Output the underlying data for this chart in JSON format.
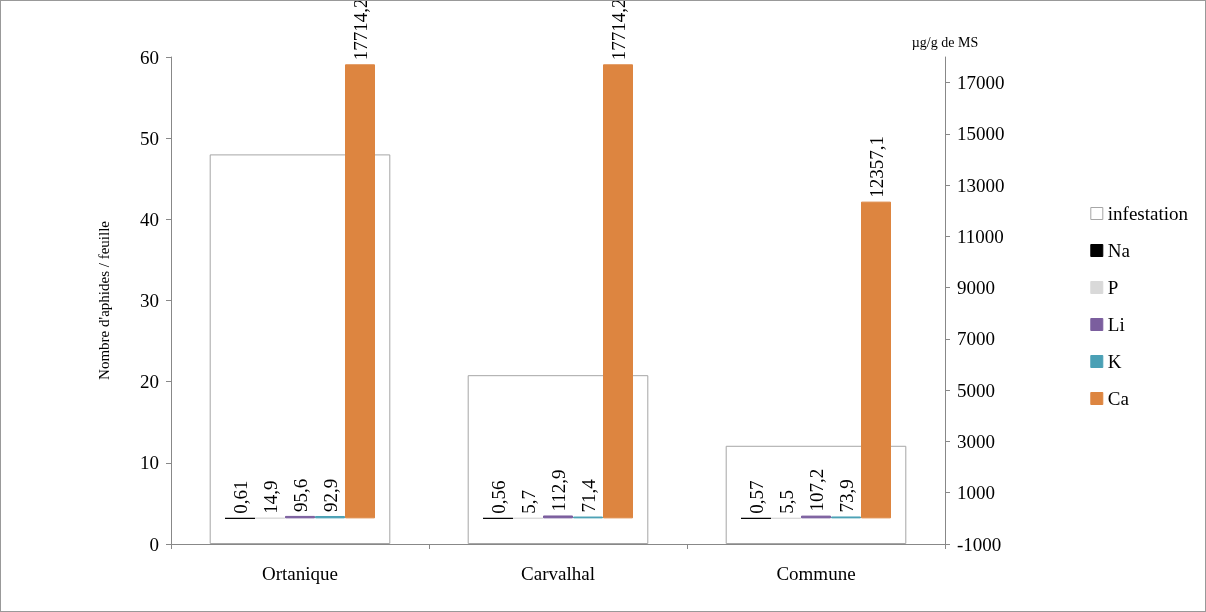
{
  "chart_data": {
    "type": "bar",
    "ylabel": "Nombre d'aphides / feuille",
    "y2label": "µg/g de MS",
    "categories": [
      "Ortanique",
      "Carvalhal",
      "Commune"
    ],
    "series": [
      {
        "name": "infestation",
        "color": "#ffffff",
        "values": [
          48,
          20.8,
          12.1
        ]
      },
      {
        "name": "Na",
        "color": "#000000",
        "axis": "y2",
        "values": [
          0.61,
          0.56,
          0.57
        ],
        "value_labels": [
          "0,61",
          "0,56",
          "0,57"
        ]
      },
      {
        "name": "P",
        "color": "#d9d9d9",
        "axis": "y2",
        "values": [
          14.9,
          5.7,
          5.5
        ],
        "value_labels": [
          "14,9",
          "5,7",
          "5,5"
        ]
      },
      {
        "name": "Li",
        "color": "#7b5e9e",
        "axis": "y2",
        "values": [
          95.6,
          112.9,
          107.2
        ],
        "value_labels": [
          "95,6",
          "112,9",
          "107,2"
        ]
      },
      {
        "name": "K",
        "color": "#4aa0b5",
        "axis": "y2",
        "values": [
          92.9,
          71.4,
          73.9
        ],
        "value_labels": [
          "92,9",
          "71,4",
          "73,9"
        ]
      },
      {
        "name": "Ca",
        "color": "#dd8540",
        "axis": "y2",
        "values": [
          17714.2,
          17714.2,
          12357.1
        ],
        "value_labels": [
          "17714,2",
          "17714,2",
          "12357,1"
        ]
      }
    ],
    "ylim": [
      0,
      60
    ],
    "yticks": [
      0,
      10,
      20,
      30,
      40,
      50,
      60
    ],
    "y2lim": [
      -1000,
      18000
    ],
    "y2ticks": [
      -1000,
      1000,
      3000,
      5000,
      7000,
      9000,
      11000,
      13000,
      15000,
      17000
    ],
    "grid": false,
    "legend": "right"
  }
}
